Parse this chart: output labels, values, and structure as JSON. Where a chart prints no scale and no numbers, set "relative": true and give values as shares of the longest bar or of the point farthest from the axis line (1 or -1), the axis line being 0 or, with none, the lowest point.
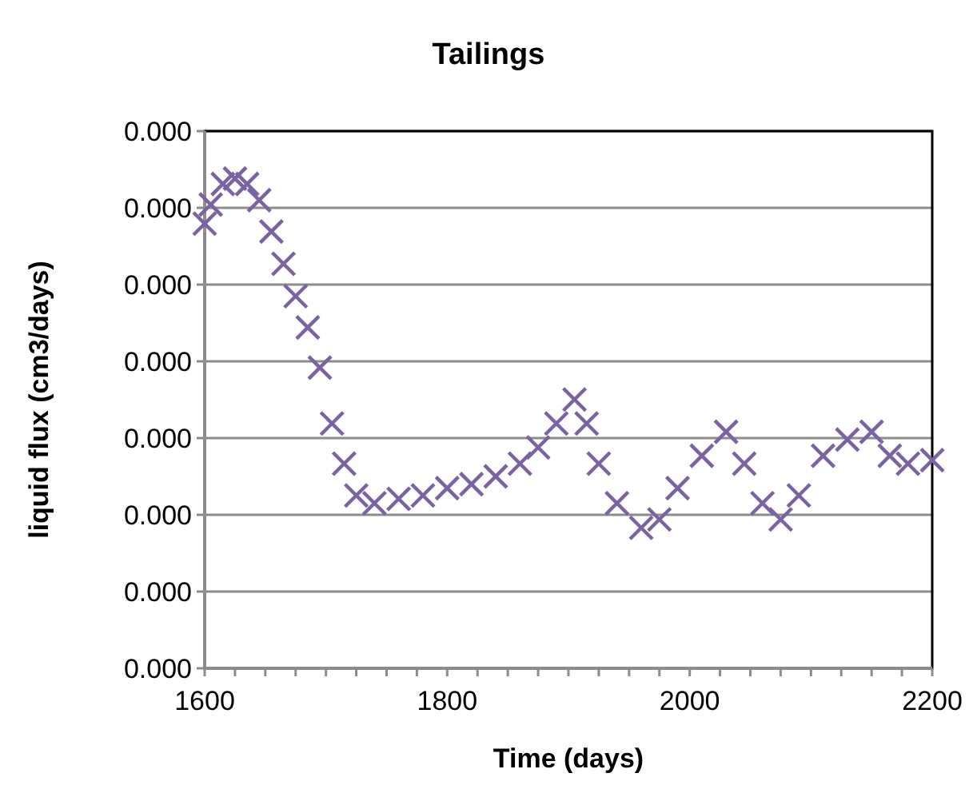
{
  "chart_data": {
    "type": "scatter",
    "title": "Tailings",
    "xlabel": "Time (days)",
    "ylabel": "liquid flux (cm3/days)",
    "relative": true,
    "marker": "cross",
    "grid": "y",
    "annotations": [
      "0.000",
      "0.000",
      "0.000",
      "0.000",
      "0.000",
      "0.000",
      "0.000",
      "0.000"
    ],
    "xlim": [
      1600,
      2200
    ],
    "xticks": [
      1600,
      1800,
      2000,
      2200
    ],
    "x": [
      1600,
      1605,
      1615,
      1625,
      1635,
      1645,
      1655,
      1665,
      1675,
      1685,
      1695,
      1705,
      1715,
      1725,
      1740,
      1760,
      1780,
      1800,
      1820,
      1840,
      1860,
      1875,
      1890,
      1905,
      1915,
      1925,
      1940,
      1960,
      1975,
      1990,
      2010,
      2030,
      2045,
      2060,
      2075,
      2090,
      2110,
      2130,
      2150,
      2165,
      2180,
      2200
    ],
    "series": [
      {
        "color": "#7b62a3",
        "values": [
          0.908,
          0.947,
          0.989,
          1,
          0.989,
          0.956,
          0.892,
          0.826,
          0.76,
          0.696,
          0.614,
          0.5,
          0.418,
          0.353,
          0.337,
          0.346,
          0.353,
          0.368,
          0.376,
          0.392,
          0.418,
          0.451,
          0.5,
          0.549,
          0.5,
          0.418,
          0.337,
          0.287,
          0.304,
          0.368,
          0.434,
          0.483,
          0.418,
          0.337,
          0.304,
          0.353,
          0.434,
          0.467,
          0.483,
          0.434,
          0.418,
          0.425
        ]
      }
    ]
  }
}
